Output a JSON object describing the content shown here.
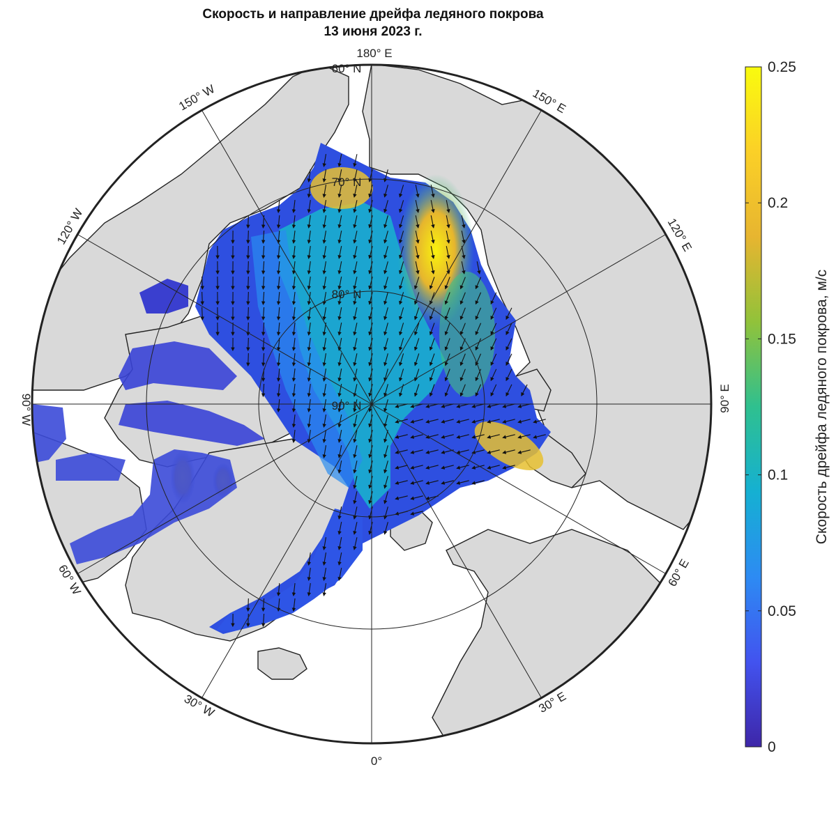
{
  "title": {
    "line1": "Скорость и направление дрейфа ледяного покрова",
    "line2": "13 июня 2023 г."
  },
  "map": {
    "projection": "north-polar-stereographic",
    "ocean_color": "#ffffff",
    "land_color": "#d9d9d9",
    "meridian_labels": {
      "m180": "180° E",
      "m150e": "150° E",
      "m120e": "120° E",
      "m90e": "90° E",
      "m60e": "60° E",
      "m30e": "30° E",
      "m0": "0°",
      "m30w": "30° W",
      "m60w": "60° W",
      "m90w": "90° W",
      "m120w": "120° W",
      "m150w": "150° W"
    },
    "parallel_labels": {
      "p60": "60° N",
      "p70": "70° N",
      "p80": "80° N",
      "p90": "90° N"
    }
  },
  "colorbar": {
    "label": "Скорость дрейфа ледяного покрова, м/с",
    "min": 0,
    "max": 0.25,
    "ticks": [
      "0",
      "0.05",
      "0.1",
      "0.15",
      "0.2",
      "0.25"
    ],
    "colormap": [
      "#3e26a8",
      "#4253ef",
      "#2d8bf3",
      "#15b0d2",
      "#2fc08f",
      "#91c23a",
      "#e7b530",
      "#fbd027",
      "#f9fb0e"
    ]
  }
}
